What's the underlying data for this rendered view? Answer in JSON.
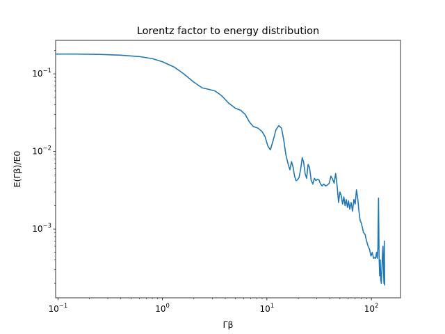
{
  "chart_data": {
    "type": "line",
    "title": "Lorentz factor to energy distribution",
    "xlabel": "Γβ",
    "ylabel": "E(Γβ)/E0",
    "xscale": "log",
    "yscale": "log",
    "xlim": [
      0.095,
      190
    ],
    "ylim": [
      0.00013,
      0.27
    ],
    "grid": false,
    "color": "#1f77b4",
    "x_ticks": [
      {
        "value": 0.1,
        "label_base": "10",
        "label_exp": "−1"
      },
      {
        "value": 1,
        "label_base": "10",
        "label_exp": "0"
      },
      {
        "value": 10,
        "label_base": "10",
        "label_exp": "1"
      },
      {
        "value": 100,
        "label_base": "10",
        "label_exp": "2"
      }
    ],
    "y_ticks": [
      {
        "value": 0.001,
        "label_base": "10",
        "label_exp": "−3"
      },
      {
        "value": 0.01,
        "label_base": "10",
        "label_exp": "−2"
      },
      {
        "value": 0.1,
        "label_base": "10",
        "label_exp": "−1"
      }
    ],
    "series": [
      {
        "x": [
          0.095,
          0.15,
          0.25,
          0.4,
          0.6,
          0.8,
          1.0,
          1.3,
          1.6,
          2.0,
          2.4,
          2.8,
          3.2,
          3.7,
          4.3,
          5.0,
          5.6,
          6.2,
          6.8,
          7.4,
          8.2,
          9.0,
          9.6,
          10.2,
          10.8,
          11.5,
          12.2,
          13.0,
          13.8,
          14.5,
          15.2,
          16.0,
          16.6,
          17.2,
          17.8,
          18.4,
          19.0,
          19.6,
          20.3,
          21.0,
          21.8,
          22.5,
          23.2,
          24.0,
          24.8,
          25.6,
          26.5,
          27.5,
          28.5,
          29.5,
          30.5,
          31.5,
          32.6,
          33.8,
          35.0,
          36.5,
          38.0,
          39.5,
          41.0,
          42.5,
          44.0,
          45.5,
          47.0,
          48.5,
          50.0,
          51.5,
          53.0,
          54.5,
          56.0,
          57.5,
          59.0,
          60.5,
          62.0,
          64.0,
          66.0,
          68.0,
          70.0,
          72.0,
          74.0,
          76.0,
          78.0,
          80.0,
          82.0,
          84.0,
          87.0,
          90.0,
          93.0,
          96.0,
          99.0,
          102.0,
          105.0,
          108.0,
          110.0,
          112.0,
          114.0,
          115.5,
          117.0,
          118.5,
          120.0,
          121.5,
          123.0,
          124.5,
          126.0,
          127.5,
          129.0,
          130.5,
          132.0,
          133.0,
          134.0
        ],
        "y": [
          0.18,
          0.18,
          0.178,
          0.174,
          0.167,
          0.157,
          0.143,
          0.122,
          0.1,
          0.078,
          0.066,
          0.063,
          0.06,
          0.052,
          0.042,
          0.036,
          0.034,
          0.03,
          0.024,
          0.021,
          0.02,
          0.018,
          0.0155,
          0.0118,
          0.0105,
          0.014,
          0.019,
          0.0215,
          0.02,
          0.014,
          0.009,
          0.0068,
          0.0058,
          0.0074,
          0.0063,
          0.0048,
          0.0042,
          0.0043,
          0.0046,
          0.0058,
          0.0083,
          0.0072,
          0.0052,
          0.0045,
          0.0068,
          0.0062,
          0.0043,
          0.0038,
          0.0045,
          0.0042,
          0.0044,
          0.0043,
          0.0038,
          0.0036,
          0.0038,
          0.0036,
          0.0037,
          0.0039,
          0.0048,
          0.0044,
          0.0039,
          0.0052,
          0.0036,
          0.0022,
          0.003,
          0.0027,
          0.0021,
          0.0026,
          0.002,
          0.0024,
          0.0019,
          0.0023,
          0.0018,
          0.0022,
          0.0017,
          0.0024,
          0.0021,
          0.0032,
          0.0025,
          0.0017,
          0.0013,
          0.0012,
          0.00105,
          0.0009,
          0.00085,
          0.0007,
          0.0006,
          0.00055,
          0.00045,
          0.0005,
          0.00042,
          0.00043,
          0.00042,
          0.0005,
          0.00042,
          0.00058,
          0.0025,
          0.00045,
          0.00025,
          0.0004,
          0.00022,
          0.0002,
          0.0003,
          0.00045,
          0.0006,
          0.0003,
          0.0002,
          0.0007,
          0.00019
        ]
      }
    ]
  }
}
